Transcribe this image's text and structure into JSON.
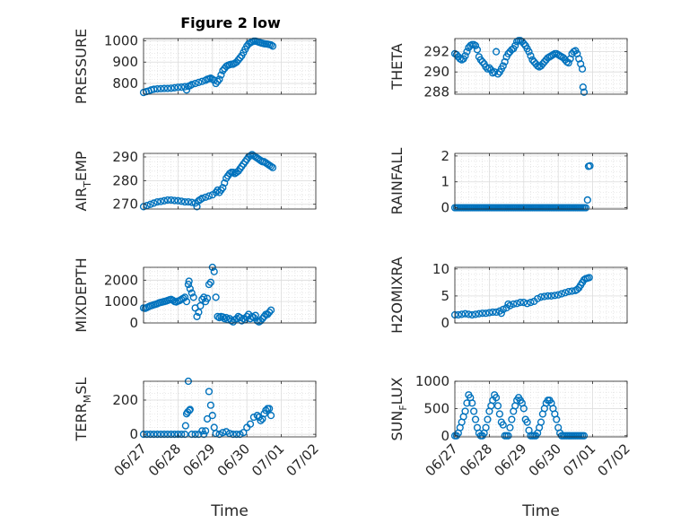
{
  "chart_data": [
    {
      "type": "scatter",
      "title": "Figure 2 low",
      "ylabel_main": "PRESSURE",
      "ylabel_sub": "",
      "xlim": [
        0,
        5
      ],
      "xticks": [
        0,
        1,
        2,
        3,
        4,
        5
      ],
      "ylim": [
        750,
        1010
      ],
      "yticks": [
        800,
        900,
        1000
      ],
      "ytick_labels": [
        "800",
        "900",
        "1000"
      ],
      "x": [
        0,
        0.08,
        0.15,
        0.22,
        0.3,
        0.4,
        0.5,
        0.6,
        0.7,
        0.8,
        0.9,
        1.0,
        1.1,
        1.2,
        1.25,
        1.3,
        1.35,
        1.4,
        1.5,
        1.6,
        1.7,
        1.8,
        1.85,
        1.9,
        1.95,
        2.0,
        2.05,
        2.1,
        2.15,
        2.2,
        2.25,
        2.3,
        2.35,
        2.4,
        2.45,
        2.5,
        2.55,
        2.6,
        2.65,
        2.7,
        2.75,
        2.8,
        2.85,
        2.9,
        2.95,
        3.0,
        3.05,
        3.1,
        3.15,
        3.2,
        3.25,
        3.3,
        3.35,
        3.4,
        3.45,
        3.5,
        3.55,
        3.6,
        3.65,
        3.7,
        3.75
      ],
      "y": [
        758,
        762,
        765,
        770,
        773,
        775,
        776,
        777,
        777,
        778,
        780,
        782,
        783,
        785,
        770,
        787,
        790,
        795,
        800,
        805,
        810,
        815,
        820,
        822,
        825,
        820,
        815,
        800,
        810,
        820,
        840,
        860,
        870,
        880,
        885,
        888,
        890,
        890,
        895,
        900,
        910,
        920,
        930,
        945,
        960,
        975,
        985,
        990,
        995,
        998,
        998,
        996,
        993,
        990,
        988,
        986,
        985,
        984,
        982,
        980,
        975
      ],
      "color": "#0072BD"
    },
    {
      "type": "scatter",
      "title": "",
      "ylabel_main": "THETA",
      "ylabel_sub": "",
      "xlim": [
        0,
        5
      ],
      "xticks": [
        0,
        1,
        2,
        3,
        4,
        5
      ],
      "ylim": [
        287.8,
        293.3
      ],
      "yticks": [
        288,
        290,
        292
      ],
      "ytick_labels": [
        "288",
        "290",
        "292"
      ],
      "x": [
        0,
        0.05,
        0.1,
        0.15,
        0.2,
        0.25,
        0.3,
        0.35,
        0.4,
        0.45,
        0.5,
        0.55,
        0.6,
        0.65,
        0.7,
        0.75,
        0.8,
        0.85,
        0.9,
        0.95,
        1.0,
        1.05,
        1.1,
        1.15,
        1.2,
        1.25,
        1.3,
        1.35,
        1.4,
        1.45,
        1.5,
        1.55,
        1.6,
        1.65,
        1.7,
        1.75,
        1.8,
        1.85,
        1.9,
        1.95,
        2.0,
        2.05,
        2.1,
        2.15,
        2.2,
        2.25,
        2.3,
        2.35,
        2.4,
        2.45,
        2.5,
        2.55,
        2.6,
        2.65,
        2.7,
        2.75,
        2.8,
        2.85,
        2.9,
        2.95,
        3.0,
        3.05,
        3.1,
        3.15,
        3.2,
        3.25,
        3.3,
        3.35,
        3.4,
        3.45,
        3.5,
        3.55,
        3.6,
        3.65,
        3.7,
        3.72,
        3.75
      ],
      "y": [
        291.8,
        291.7,
        291.5,
        291.3,
        291.2,
        291.3,
        291.6,
        292.0,
        292.4,
        292.6,
        292.7,
        292.7,
        292.6,
        292.2,
        291.5,
        291.2,
        291.0,
        290.8,
        290.5,
        290.3,
        290.4,
        290.2,
        289.9,
        290.0,
        292.0,
        289.8,
        290.0,
        290.3,
        290.6,
        291.0,
        291.5,
        291.8,
        292.0,
        292.2,
        292.3,
        292.6,
        293.0,
        293.1,
        293.1,
        293.0,
        292.8,
        292.6,
        292.3,
        292.0,
        291.6,
        291.2,
        291.0,
        290.8,
        290.6,
        290.5,
        290.6,
        290.8,
        291.0,
        291.2,
        291.4,
        291.5,
        291.6,
        291.7,
        291.8,
        291.8,
        291.7,
        291.6,
        291.5,
        291.4,
        291.2,
        291.0,
        290.9,
        291.3,
        291.8,
        292.0,
        292.1,
        291.8,
        291.3,
        290.8,
        290.3,
        288.5,
        288.0
      ],
      "color": "#0072BD"
    },
    {
      "type": "scatter",
      "title": "",
      "ylabel_main": "AIR",
      "ylabel_sub": "T",
      "ylabel_tail": "EMP",
      "xlim": [
        0,
        5
      ],
      "xticks": [
        0,
        1,
        2,
        3,
        4,
        5
      ],
      "ylim": [
        268,
        291.5
      ],
      "yticks": [
        270,
        280,
        290
      ],
      "ytick_labels": [
        "270",
        "280",
        "290"
      ],
      "x": [
        0,
        0.1,
        0.2,
        0.3,
        0.4,
        0.5,
        0.6,
        0.7,
        0.8,
        0.9,
        1.0,
        1.1,
        1.2,
        1.3,
        1.4,
        1.5,
        1.55,
        1.6,
        1.65,
        1.7,
        1.8,
        1.9,
        2.0,
        2.1,
        2.15,
        2.2,
        2.25,
        2.3,
        2.35,
        2.4,
        2.45,
        2.5,
        2.55,
        2.6,
        2.65,
        2.7,
        2.75,
        2.8,
        2.85,
        2.9,
        2.95,
        3.0,
        3.05,
        3.1,
        3.15,
        3.2,
        3.25,
        3.3,
        3.35,
        3.4,
        3.45,
        3.5,
        3.55,
        3.6,
        3.65,
        3.7,
        3.75
      ],
      "y": [
        269,
        269.5,
        270,
        270.5,
        271,
        271.2,
        271.5,
        271.8,
        271.8,
        271.6,
        271.5,
        271.3,
        271,
        271,
        270.8,
        270.5,
        269,
        271.5,
        272,
        272.5,
        273,
        273.5,
        274,
        275,
        276,
        275,
        276,
        277,
        279,
        281,
        282,
        283,
        283.5,
        283.5,
        283,
        283.5,
        284,
        285,
        286,
        287,
        288,
        289,
        290,
        290.5,
        291,
        290.5,
        290,
        289.5,
        289,
        288.5,
        288,
        288,
        287.5,
        287,
        286.5,
        286,
        285.5
      ],
      "color": "#0072BD"
    },
    {
      "type": "scatter",
      "title": "",
      "ylabel_main": "RAINFALL",
      "ylabel_sub": "",
      "xlim": [
        0,
        5
      ],
      "xticks": [
        0,
        1,
        2,
        3,
        4,
        5
      ],
      "ylim": [
        -0.05,
        2.1
      ],
      "yticks": [
        0,
        1,
        2
      ],
      "ytick_labels": [
        "0",
        "1",
        "2"
      ],
      "x": [
        0,
        0.05,
        0.1,
        0.15,
        0.2,
        0.25,
        0.3,
        0.35,
        0.4,
        0.45,
        0.5,
        0.55,
        0.6,
        0.65,
        0.7,
        0.75,
        0.8,
        0.85,
        0.9,
        0.95,
        1.0,
        1.05,
        1.1,
        1.15,
        1.2,
        1.25,
        1.3,
        1.35,
        1.4,
        1.45,
        1.5,
        1.55,
        1.6,
        1.65,
        1.7,
        1.75,
        1.8,
        1.85,
        1.9,
        1.95,
        2.0,
        2.05,
        2.1,
        2.15,
        2.2,
        2.25,
        2.3,
        2.35,
        2.4,
        2.45,
        2.5,
        2.55,
        2.6,
        2.65,
        2.7,
        2.75,
        2.8,
        2.85,
        2.9,
        2.95,
        3.0,
        3.05,
        3.1,
        3.15,
        3.2,
        3.25,
        3.3,
        3.35,
        3.4,
        3.45,
        3.5,
        3.55,
        3.6,
        3.65,
        3.7,
        3.75,
        3.8,
        3.85,
        3.88,
        3.92
      ],
      "y": [
        0,
        0,
        0,
        0,
        0,
        0,
        0,
        0,
        0,
        0,
        0,
        0,
        0,
        0,
        0,
        0,
        0,
        0,
        0,
        0,
        0,
        0,
        0,
        0,
        0,
        0,
        0,
        0,
        0,
        0,
        0,
        0,
        0,
        0,
        0,
        0,
        0,
        0,
        0,
        0,
        0,
        0,
        0,
        0,
        0,
        0,
        0,
        0,
        0,
        0,
        0,
        0,
        0,
        0,
        0,
        0,
        0,
        0,
        0,
        0,
        0,
        0,
        0,
        0,
        0,
        0,
        0,
        0,
        0,
        0,
        0,
        0,
        0,
        0,
        0,
        0,
        0,
        0.3,
        1.6,
        1.62
      ],
      "color": "#0072BD"
    },
    {
      "type": "scatter",
      "title": "",
      "ylabel_main": "MIXDEPTH",
      "ylabel_sub": "",
      "xlim": [
        0,
        5
      ],
      "xticks": [
        0,
        1,
        2,
        3,
        4,
        5
      ],
      "ylim": [
        0,
        2600
      ],
      "yticks": [
        0,
        1000,
        2000
      ],
      "ytick_labels": [
        "0",
        "1000",
        "2000"
      ],
      "x": [
        0,
        0.05,
        0.1,
        0.15,
        0.2,
        0.25,
        0.3,
        0.35,
        0.4,
        0.45,
        0.5,
        0.55,
        0.6,
        0.65,
        0.7,
        0.75,
        0.8,
        0.85,
        0.9,
        0.95,
        1.0,
        1.05,
        1.1,
        1.15,
        1.2,
        1.25,
        1.3,
        1.32,
        1.35,
        1.4,
        1.45,
        1.5,
        1.55,
        1.6,
        1.65,
        1.7,
        1.75,
        1.8,
        1.85,
        1.9,
        1.95,
        2.0,
        2.05,
        2.1,
        2.15,
        2.2,
        2.25,
        2.3,
        2.35,
        2.4,
        2.45,
        2.5,
        2.55,
        2.6,
        2.65,
        2.7,
        2.75,
        2.8,
        2.85,
        2.9,
        2.95,
        3.0,
        3.05,
        3.1,
        3.15,
        3.2,
        3.25,
        3.3,
        3.35,
        3.4,
        3.45,
        3.5,
        3.55,
        3.6,
        3.65,
        3.7
      ],
      "y": [
        700,
        680,
        720,
        760,
        800,
        820,
        850,
        870,
        900,
        940,
        960,
        980,
        1000,
        1020,
        1050,
        1080,
        1100,
        1060,
        1000,
        980,
        1020,
        1050,
        1100,
        1150,
        1200,
        1000,
        1800,
        1950,
        1600,
        1400,
        1200,
        700,
        300,
        500,
        800,
        1100,
        1200,
        1000,
        1150,
        1800,
        1900,
        2600,
        2400,
        1200,
        300,
        250,
        300,
        280,
        200,
        250,
        150,
        200,
        100,
        50,
        150,
        200,
        300,
        250,
        100,
        200,
        150,
        300,
        400,
        200,
        300,
        250,
        350,
        100,
        50,
        100,
        200,
        300,
        400,
        400,
        500,
        600
      ],
      "color": "#0072BD"
    },
    {
      "type": "scatter",
      "title": "",
      "ylabel_main": "H2OMIXRA",
      "ylabel_sub": "",
      "xlim": [
        0,
        5
      ],
      "xticks": [
        0,
        1,
        2,
        3,
        4,
        5
      ],
      "ylim": [
        0,
        10.3
      ],
      "yticks": [
        0,
        5,
        10
      ],
      "ytick_labels": [
        "0",
        "5",
        "10"
      ],
      "x": [
        0,
        0.1,
        0.2,
        0.3,
        0.4,
        0.5,
        0.6,
        0.7,
        0.8,
        0.9,
        1.0,
        1.1,
        1.2,
        1.3,
        1.35,
        1.4,
        1.5,
        1.55,
        1.6,
        1.7,
        1.8,
        1.9,
        2.0,
        2.1,
        2.2,
        2.3,
        2.4,
        2.5,
        2.6,
        2.7,
        2.8,
        2.9,
        3.0,
        3.1,
        3.2,
        3.3,
        3.4,
        3.5,
        3.55,
        3.6,
        3.65,
        3.7,
        3.75,
        3.8,
        3.85,
        3.9
      ],
      "y": [
        1.5,
        1.5,
        1.6,
        1.7,
        1.6,
        1.5,
        1.6,
        1.7,
        1.8,
        1.8,
        1.9,
        2.0,
        2.0,
        2.2,
        1.8,
        2.5,
        2.8,
        3.5,
        3.2,
        3.5,
        3.6,
        3.8,
        3.8,
        3.6,
        3.8,
        4.0,
        4.5,
        4.8,
        4.9,
        5.0,
        5.0,
        5.1,
        5.2,
        5.4,
        5.6,
        5.8,
        5.9,
        6.0,
        6.2,
        6.5,
        7.0,
        7.5,
        8.0,
        8.2,
        8.3,
        8.4
      ],
      "color": "#0072BD"
    },
    {
      "type": "scatter",
      "title": "",
      "ylabel_main": "TERR",
      "ylabel_sub": "M",
      "ylabel_tail": "SL",
      "xlim": [
        0,
        5
      ],
      "xticks": [
        0,
        1,
        2,
        3,
        4,
        5
      ],
      "xtick_labels": [
        "06/27",
        "06/28",
        "06/29",
        "06/30",
        "07/01",
        "07/02"
      ],
      "xlabel": "Time",
      "ylim": [
        -15,
        310
      ],
      "yticks": [
        0,
        200
      ],
      "ytick_labels": [
        "0",
        "200"
      ],
      "x": [
        0,
        0.1,
        0.2,
        0.3,
        0.4,
        0.5,
        0.6,
        0.7,
        0.8,
        0.9,
        1.0,
        1.1,
        1.2,
        1.22,
        1.25,
        1.28,
        1.3,
        1.33,
        1.35,
        1.4,
        1.5,
        1.6,
        1.7,
        1.75,
        1.8,
        1.85,
        1.9,
        1.95,
        2.0,
        2.05,
        2.1,
        2.2,
        2.3,
        2.4,
        2.5,
        2.6,
        2.7,
        2.8,
        2.9,
        3.0,
        3.1,
        3.2,
        3.3,
        3.35,
        3.4,
        3.45,
        3.5,
        3.55,
        3.6,
        3.65,
        3.7
      ],
      "y": [
        0,
        0,
        0,
        0,
        0,
        0,
        0,
        0,
        0,
        0,
        0,
        0,
        0,
        50,
        120,
        130,
        310,
        140,
        145,
        0,
        0,
        0,
        20,
        0,
        20,
        90,
        250,
        170,
        110,
        40,
        5,
        0,
        10,
        15,
        5,
        0,
        0,
        0,
        10,
        40,
        60,
        100,
        110,
        100,
        80,
        90,
        120,
        140,
        150,
        150,
        110
      ],
      "color": "#0072BD"
    },
    {
      "type": "scatter",
      "title": "",
      "ylabel_main": "SUN",
      "ylabel_sub": "F",
      "ylabel_tail": "LUX",
      "xlim": [
        0,
        5
      ],
      "xticks": [
        0,
        1,
        2,
        3,
        4,
        5
      ],
      "xtick_labels": [
        "06/27",
        "06/28",
        "06/29",
        "06/30",
        "07/01",
        "07/02"
      ],
      "xlabel": "Time",
      "ylim": [
        -20,
        1000
      ],
      "yticks": [
        0,
        500,
        1000
      ],
      "ytick_labels": [
        "0",
        "500",
        "1000"
      ],
      "x": [
        0,
        0.05,
        0.1,
        0.15,
        0.2,
        0.25,
        0.3,
        0.35,
        0.4,
        0.45,
        0.5,
        0.55,
        0.6,
        0.65,
        0.7,
        0.75,
        0.8,
        0.85,
        0.9,
        0.95,
        1.0,
        1.05,
        1.1,
        1.15,
        1.2,
        1.25,
        1.3,
        1.35,
        1.4,
        1.45,
        1.5,
        1.55,
        1.6,
        1.65,
        1.7,
        1.75,
        1.8,
        1.85,
        1.9,
        1.95,
        2.0,
        2.05,
        2.1,
        2.15,
        2.2,
        2.25,
        2.3,
        2.35,
        2.4,
        2.45,
        2.5,
        2.55,
        2.6,
        2.65,
        2.7,
        2.75,
        2.8,
        2.85,
        2.9,
        2.95,
        3.0,
        3.05,
        3.1,
        3.15,
        3.2,
        3.25,
        3.3,
        3.35,
        3.4,
        3.45,
        3.5,
        3.55,
        3.6,
        3.65,
        3.7,
        3.75
      ],
      "y": [
        0,
        0,
        50,
        150,
        250,
        350,
        450,
        600,
        750,
        700,
        600,
        450,
        300,
        150,
        50,
        0,
        0,
        50,
        150,
        300,
        450,
        550,
        650,
        750,
        700,
        550,
        400,
        250,
        200,
        0,
        0,
        0,
        150,
        300,
        450,
        550,
        650,
        700,
        650,
        600,
        500,
        300,
        250,
        100,
        0,
        0,
        0,
        0,
        50,
        150,
        250,
        400,
        500,
        600,
        650,
        650,
        600,
        500,
        400,
        300,
        150,
        50,
        0,
        0,
        0,
        0,
        0,
        0,
        0,
        0,
        0,
        0,
        0,
        0,
        0,
        0
      ],
      "color": "#0072BD"
    }
  ]
}
